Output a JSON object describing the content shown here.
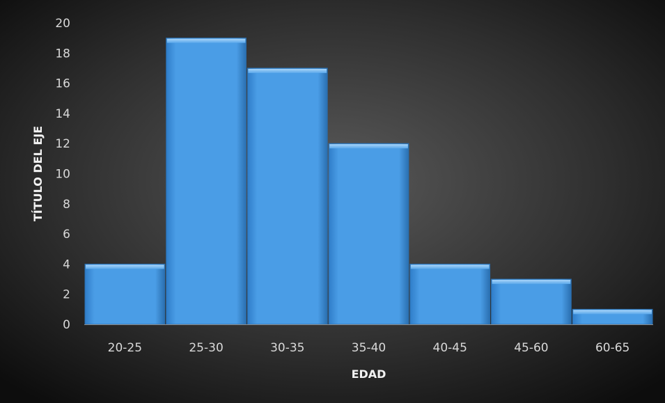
{
  "chart_data": {
    "type": "bar",
    "title": "",
    "xlabel": "EDAD",
    "ylabel": "TÍTULO DEL EJE",
    "categories": [
      "20-25",
      "25-30",
      "30-35",
      "35-40",
      "40-45",
      "45-60",
      "60-65"
    ],
    "values": [
      4,
      19,
      17,
      12,
      4,
      3,
      1
    ],
    "ylim": [
      0,
      20
    ],
    "yticks": [
      "0",
      "2",
      "4",
      "6",
      "8",
      "10",
      "12",
      "14",
      "16",
      "18",
      "20"
    ],
    "grid": false,
    "legend": "none",
    "colors": {
      "background_center": "#595959",
      "background_edge": "#0d0d0d",
      "bar_fill": "#4a9de6",
      "bar_top": "#8cc4f5",
      "bar_edge": "#2a6fb0",
      "axis_text": "#d9d9d9",
      "axis_title": "#f2f2f2",
      "axis_line": "#8c8c8c"
    }
  }
}
